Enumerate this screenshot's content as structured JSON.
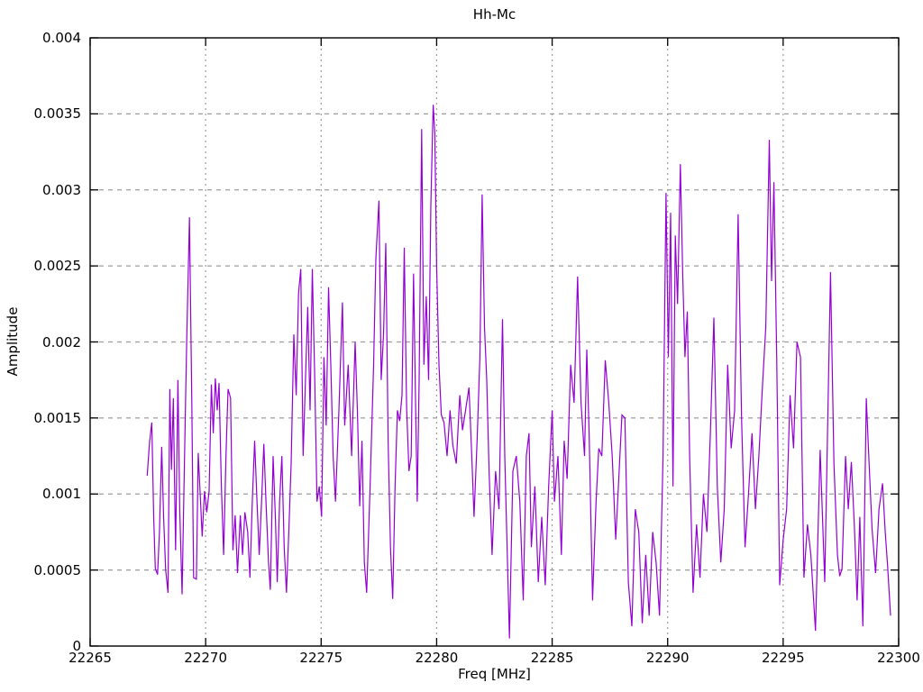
{
  "chart_data": {
    "type": "line",
    "title": "Hh-Mc",
    "xlabel": "Freq [MHz]",
    "ylabel": "Amplitude",
    "xlim": [
      22265,
      22300
    ],
    "ylim": [
      0,
      0.004
    ],
    "grid": "on",
    "legend": "none",
    "x_ticks": {
      "values": [
        22265,
        22270,
        22275,
        22280,
        22285,
        22290,
        22295,
        22300
      ],
      "labels": [
        "22265",
        "22270",
        "22275",
        "22280",
        "22285",
        "22290",
        "22295",
        "22300"
      ]
    },
    "y_ticks": {
      "values": [
        0,
        0.0005,
        0.001,
        0.0015,
        0.002,
        0.0025,
        0.003,
        0.0035,
        0.004
      ],
      "labels": [
        "0",
        "0.0005",
        "0.001",
        "0.0015",
        "0.002",
        "0.0025",
        "0.003",
        "0.0035",
        "0.004"
      ]
    },
    "series": [
      {
        "name": "Hh-Mc",
        "color": "#9400d3",
        "points": [
          [
            22267.47,
            0.00112
          ],
          [
            22267.57,
            0.00134
          ],
          [
            22267.67,
            0.00147
          ],
          [
            22267.75,
            0.00085
          ],
          [
            22267.82,
            0.00051
          ],
          [
            22267.92,
            0.00047
          ],
          [
            22268.0,
            0.00075
          ],
          [
            22268.1,
            0.00131
          ],
          [
            22268.18,
            0.00085
          ],
          [
            22268.27,
            0.0005
          ],
          [
            22268.37,
            0.00035
          ],
          [
            22268.45,
            0.00169
          ],
          [
            22268.52,
            0.00116
          ],
          [
            22268.6,
            0.00163
          ],
          [
            22268.7,
            0.00063
          ],
          [
            22268.8,
            0.00175
          ],
          [
            22268.88,
            0.0009
          ],
          [
            22268.98,
            0.00034
          ],
          [
            22269.08,
            0.0012
          ],
          [
            22269.18,
            0.002
          ],
          [
            22269.3,
            0.00282
          ],
          [
            22269.4,
            0.0016
          ],
          [
            22269.48,
            0.00045
          ],
          [
            22269.6,
            0.00044
          ],
          [
            22269.68,
            0.00127
          ],
          [
            22269.78,
            0.00095
          ],
          [
            22269.85,
            0.00072
          ],
          [
            22269.95,
            0.00102
          ],
          [
            22270.05,
            0.00088
          ],
          [
            22270.15,
            0.00102
          ],
          [
            22270.25,
            0.00172
          ],
          [
            22270.33,
            0.0014
          ],
          [
            22270.42,
            0.00176
          ],
          [
            22270.5,
            0.00155
          ],
          [
            22270.58,
            0.00173
          ],
          [
            22270.68,
            0.00105
          ],
          [
            22270.78,
            0.0006
          ],
          [
            22270.88,
            0.00125
          ],
          [
            22270.97,
            0.00169
          ],
          [
            22271.08,
            0.00163
          ],
          [
            22271.18,
            0.00063
          ],
          [
            22271.28,
            0.00086
          ],
          [
            22271.38,
            0.00048
          ],
          [
            22271.5,
            0.00086
          ],
          [
            22271.6,
            0.0006
          ],
          [
            22271.7,
            0.00088
          ],
          [
            22271.82,
            0.00075
          ],
          [
            22271.92,
            0.00045
          ],
          [
            22272.02,
            0.00095
          ],
          [
            22272.12,
            0.00135
          ],
          [
            22272.22,
            0.00097
          ],
          [
            22272.32,
            0.0006
          ],
          [
            22272.42,
            0.00095
          ],
          [
            22272.52,
            0.00133
          ],
          [
            22272.62,
            0.00092
          ],
          [
            22272.72,
            0.00055
          ],
          [
            22272.8,
            0.00037
          ],
          [
            22272.92,
            0.00125
          ],
          [
            22273.02,
            0.00085
          ],
          [
            22273.1,
            0.00042
          ],
          [
            22273.2,
            0.00095
          ],
          [
            22273.3,
            0.00125
          ],
          [
            22273.4,
            0.00065
          ],
          [
            22273.5,
            0.00035
          ],
          [
            22273.6,
            0.00075
          ],
          [
            22273.7,
            0.0012
          ],
          [
            22273.82,
            0.00205
          ],
          [
            22273.92,
            0.00165
          ],
          [
            22274.02,
            0.00232
          ],
          [
            22274.12,
            0.00248
          ],
          [
            22274.22,
            0.00125
          ],
          [
            22274.32,
            0.00175
          ],
          [
            22274.42,
            0.00223
          ],
          [
            22274.52,
            0.00155
          ],
          [
            22274.62,
            0.00248
          ],
          [
            22274.72,
            0.00178
          ],
          [
            22274.82,
            0.00095
          ],
          [
            22274.92,
            0.00105
          ],
          [
            22275.02,
            0.00085
          ],
          [
            22275.12,
            0.0019
          ],
          [
            22275.22,
            0.00145
          ],
          [
            22275.32,
            0.00236
          ],
          [
            22275.42,
            0.00185
          ],
          [
            22275.52,
            0.00125
          ],
          [
            22275.62,
            0.00095
          ],
          [
            22275.77,
            0.00155
          ],
          [
            22275.92,
            0.00226
          ],
          [
            22276.02,
            0.00145
          ],
          [
            22276.17,
            0.00185
          ],
          [
            22276.32,
            0.00125
          ],
          [
            22276.47,
            0.002
          ],
          [
            22276.57,
            0.00155
          ],
          [
            22276.67,
            0.00092
          ],
          [
            22276.77,
            0.00135
          ],
          [
            22276.87,
            0.00055
          ],
          [
            22276.97,
            0.00035
          ],
          [
            22277.12,
            0.00105
          ],
          [
            22277.27,
            0.00185
          ],
          [
            22277.37,
            0.00255
          ],
          [
            22277.5,
            0.00293
          ],
          [
            22277.6,
            0.00175
          ],
          [
            22277.7,
            0.00205
          ],
          [
            22277.8,
            0.00265
          ],
          [
            22277.9,
            0.00135
          ],
          [
            22278.0,
            0.00065
          ],
          [
            22278.1,
            0.00031
          ],
          [
            22278.2,
            0.00105
          ],
          [
            22278.3,
            0.00155
          ],
          [
            22278.4,
            0.00148
          ],
          [
            22278.5,
            0.00165
          ],
          [
            22278.6,
            0.00262
          ],
          [
            22278.7,
            0.00157
          ],
          [
            22278.8,
            0.00115
          ],
          [
            22278.9,
            0.00125
          ],
          [
            22279.0,
            0.00245
          ],
          [
            22279.08,
            0.00165
          ],
          [
            22279.16,
            0.00095
          ],
          [
            22279.24,
            0.00175
          ],
          [
            22279.35,
            0.0034
          ],
          [
            22279.45,
            0.00185
          ],
          [
            22279.55,
            0.0023
          ],
          [
            22279.65,
            0.00175
          ],
          [
            22279.75,
            0.0029
          ],
          [
            22279.85,
            0.00356
          ],
          [
            22279.92,
            0.00337
          ],
          [
            22280.0,
            0.0025
          ],
          [
            22280.1,
            0.00185
          ],
          [
            22280.2,
            0.00152
          ],
          [
            22280.32,
            0.00147
          ],
          [
            22280.45,
            0.00125
          ],
          [
            22280.58,
            0.00155
          ],
          [
            22280.7,
            0.00132
          ],
          [
            22280.85,
            0.0012
          ],
          [
            22281.0,
            0.00165
          ],
          [
            22281.12,
            0.00142
          ],
          [
            22281.25,
            0.00155
          ],
          [
            22281.4,
            0.0017
          ],
          [
            22281.52,
            0.00125
          ],
          [
            22281.62,
            0.00085
          ],
          [
            22281.75,
            0.00135
          ],
          [
            22281.87,
            0.0019
          ],
          [
            22281.97,
            0.00297
          ],
          [
            22282.07,
            0.0021
          ],
          [
            22282.17,
            0.00175
          ],
          [
            22282.27,
            0.00115
          ],
          [
            22282.4,
            0.0006
          ],
          [
            22282.55,
            0.00115
          ],
          [
            22282.7,
            0.0009
          ],
          [
            22282.85,
            0.00215
          ],
          [
            22282.95,
            0.00125
          ],
          [
            22283.05,
            0.00065
          ],
          [
            22283.15,
            5e-05
          ],
          [
            22283.3,
            0.00115
          ],
          [
            22283.45,
            0.00125
          ],
          [
            22283.6,
            0.00095
          ],
          [
            22283.75,
            0.0003
          ],
          [
            22283.88,
            0.00125
          ],
          [
            22284.0,
            0.0014
          ],
          [
            22284.1,
            0.00065
          ],
          [
            22284.25,
            0.00105
          ],
          [
            22284.4,
            0.00042
          ],
          [
            22284.55,
            0.00085
          ],
          [
            22284.7,
            0.0004
          ],
          [
            22284.85,
            0.00105
          ],
          [
            22285.0,
            0.00155
          ],
          [
            22285.1,
            0.00095
          ],
          [
            22285.25,
            0.00125
          ],
          [
            22285.4,
            0.0006
          ],
          [
            22285.52,
            0.00135
          ],
          [
            22285.65,
            0.0011
          ],
          [
            22285.8,
            0.00185
          ],
          [
            22285.95,
            0.0016
          ],
          [
            22286.1,
            0.00243
          ],
          [
            22286.25,
            0.0016
          ],
          [
            22286.4,
            0.00125
          ],
          [
            22286.5,
            0.00195
          ],
          [
            22286.6,
            0.0014
          ],
          [
            22286.75,
            0.0003
          ],
          [
            22286.9,
            0.00095
          ],
          [
            22287.02,
            0.0013
          ],
          [
            22287.15,
            0.00125
          ],
          [
            22287.3,
            0.00188
          ],
          [
            22287.45,
            0.0016
          ],
          [
            22287.6,
            0.00125
          ],
          [
            22287.75,
            0.0007
          ],
          [
            22287.9,
            0.00115
          ],
          [
            22288.02,
            0.00152
          ],
          [
            22288.15,
            0.0015
          ],
          [
            22288.3,
            0.00042
          ],
          [
            22288.45,
            0.00013
          ],
          [
            22288.6,
            0.0009
          ],
          [
            22288.75,
            0.00075
          ],
          [
            22288.9,
            0.00015
          ],
          [
            22289.05,
            0.0006
          ],
          [
            22289.2,
            0.0002
          ],
          [
            22289.35,
            0.00075
          ],
          [
            22289.5,
            0.00055
          ],
          [
            22289.65,
            0.0002
          ],
          [
            22289.8,
            0.00125
          ],
          [
            22289.93,
            0.00298
          ],
          [
            22290.03,
            0.0019
          ],
          [
            22290.13,
            0.00285
          ],
          [
            22290.23,
            0.00105
          ],
          [
            22290.33,
            0.0027
          ],
          [
            22290.43,
            0.00225
          ],
          [
            22290.55,
            0.00317
          ],
          [
            22290.65,
            0.00245
          ],
          [
            22290.75,
            0.0019
          ],
          [
            22290.85,
            0.0022
          ],
          [
            22290.95,
            0.00125
          ],
          [
            22291.1,
            0.00035
          ],
          [
            22291.25,
            0.0008
          ],
          [
            22291.4,
            0.00045
          ],
          [
            22291.55,
            0.001
          ],
          [
            22291.7,
            0.00075
          ],
          [
            22291.85,
            0.0014
          ],
          [
            22292.0,
            0.00216
          ],
          [
            22292.15,
            0.00105
          ],
          [
            22292.3,
            0.00055
          ],
          [
            22292.45,
            0.0009
          ],
          [
            22292.6,
            0.00185
          ],
          [
            22292.75,
            0.0013
          ],
          [
            22292.9,
            0.00155
          ],
          [
            22293.05,
            0.00284
          ],
          [
            22293.2,
            0.0015
          ],
          [
            22293.35,
            0.00065
          ],
          [
            22293.5,
            0.001
          ],
          [
            22293.65,
            0.0014
          ],
          [
            22293.8,
            0.0009
          ],
          [
            22293.95,
            0.00125
          ],
          [
            22294.1,
            0.0017
          ],
          [
            22294.25,
            0.0021
          ],
          [
            22294.4,
            0.00333
          ],
          [
            22294.5,
            0.0024
          ],
          [
            22294.6,
            0.00305
          ],
          [
            22294.72,
            0.0019
          ],
          [
            22294.85,
            0.0004
          ],
          [
            22295.0,
            0.0007
          ],
          [
            22295.15,
            0.0009
          ],
          [
            22295.3,
            0.00165
          ],
          [
            22295.45,
            0.0013
          ],
          [
            22295.6,
            0.002
          ],
          [
            22295.75,
            0.0019
          ],
          [
            22295.9,
            0.00045
          ],
          [
            22296.05,
            0.0008
          ],
          [
            22296.2,
            0.0006
          ],
          [
            22296.4,
            0.0001
          ],
          [
            22296.6,
            0.00129
          ],
          [
            22296.8,
            0.00042
          ],
          [
            22297.05,
            0.00246
          ],
          [
            22297.2,
            0.0012
          ],
          [
            22297.35,
            0.0006
          ],
          [
            22297.45,
            0.00046
          ],
          [
            22297.55,
            0.00051
          ],
          [
            22297.7,
            0.00125
          ],
          [
            22297.82,
            0.0009
          ],
          [
            22297.95,
            0.00121
          ],
          [
            22298.08,
            0.0008
          ],
          [
            22298.2,
            0.0003
          ],
          [
            22298.32,
            0.00085
          ],
          [
            22298.45,
            0.00013
          ],
          [
            22298.6,
            0.00163
          ],
          [
            22298.72,
            0.0012
          ],
          [
            22298.85,
            0.00077
          ],
          [
            22299.0,
            0.00048
          ],
          [
            22299.15,
            0.0009
          ],
          [
            22299.3,
            0.00107
          ],
          [
            22299.42,
            0.00075
          ],
          [
            22299.52,
            0.00053
          ],
          [
            22299.65,
            0.0002
          ]
        ]
      }
    ]
  }
}
